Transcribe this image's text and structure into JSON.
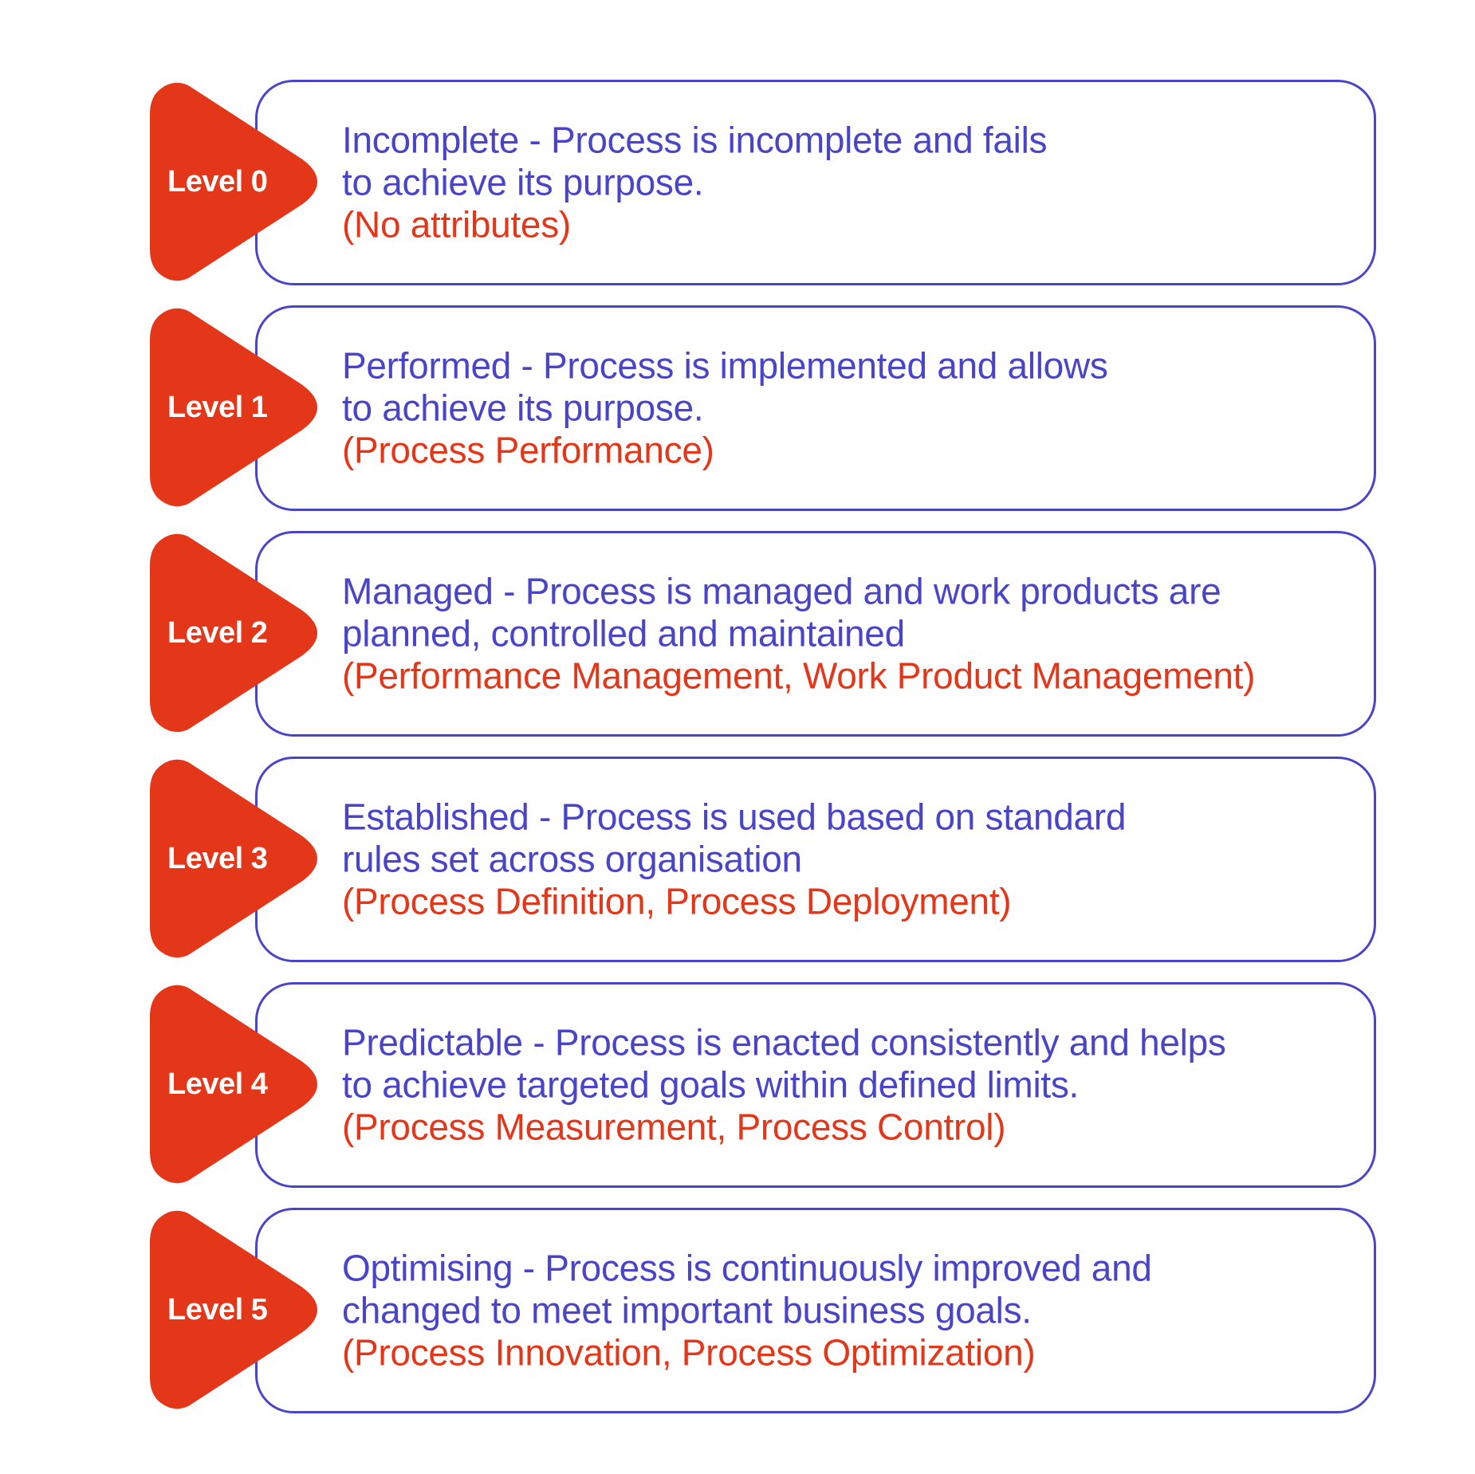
{
  "colors": {
    "primary_blue": "#4a45c8",
    "accent_red": "#e4371a",
    "background": "#ffffff"
  },
  "levels": [
    {
      "badge": "Level 0",
      "description": "Incomplete - Process is incomplete and fails\nto achieve its purpose.",
      "attributes": "(No attributes)"
    },
    {
      "badge": "Level 1",
      "description": "Performed - Process is implemented and allows\nto achieve its purpose.",
      "attributes": "(Process Performance)"
    },
    {
      "badge": "Level 2",
      "description": "Managed - Process is managed and work products are\nplanned, controlled and maintained",
      "attributes": "(Performance Management, Work Product Management)"
    },
    {
      "badge": "Level 3",
      "description": "Established - Process is used based on standard\nrules set across organisation",
      "attributes": "(Process Definition, Process Deployment)"
    },
    {
      "badge": "Level 4",
      "description": "Predictable - Process is enacted consistently and helps\nto achieve targeted goals within defined limits.",
      "attributes": "(Process Measurement, Process Control)"
    },
    {
      "badge": "Level 5",
      "description": "Optimising - Process is continuously improved and\nchanged to meet important business goals.",
      "attributes": "(Process Innovation, Process Optimization)"
    }
  ]
}
